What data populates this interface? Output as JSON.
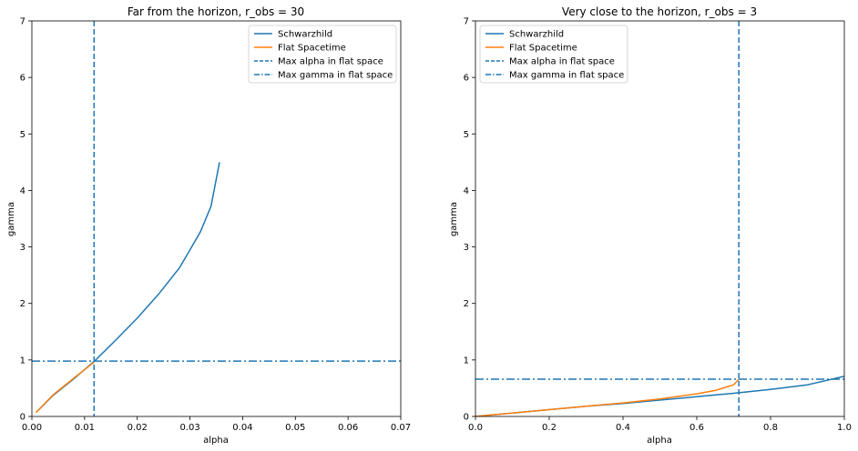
{
  "chart_data": [
    {
      "type": "line",
      "title": "Far from the horizon, r_obs = 30",
      "xlabel": "alpha",
      "ylabel": "gamma",
      "xlim": [
        0,
        0.07
      ],
      "ylim": [
        0,
        7
      ],
      "xticks": [
        "0.00",
        "0.01",
        "0.02",
        "0.03",
        "0.04",
        "0.05",
        "0.06",
        "0.07"
      ],
      "yticks": [
        "0",
        "1",
        "2",
        "3",
        "4",
        "5",
        "6",
        "7"
      ],
      "grid": false,
      "legend_position": "top-right",
      "colors": {
        "schwarzschild": "#1f77b4",
        "flat": "#ff7f0e"
      },
      "series": [
        {
          "name": "Schwarzhild",
          "style": "solid",
          "color": "#1f77b4",
          "x": [
            0.0008,
            0.004,
            0.008,
            0.012,
            0.016,
            0.02,
            0.024,
            0.028,
            0.03,
            0.032,
            0.034,
            0.0356
          ],
          "y": [
            0.07,
            0.37,
            0.67,
            0.99,
            1.36,
            1.74,
            2.16,
            2.63,
            2.95,
            3.27,
            3.72,
            4.5
          ]
        },
        {
          "name": "Flat Spacetime",
          "style": "solid",
          "color": "#ff7f0e",
          "x": [
            0.0008,
            0.004,
            0.008,
            0.0118
          ],
          "y": [
            0.07,
            0.38,
            0.68,
            0.96
          ]
        },
        {
          "name": "Max alpha in flat space",
          "style": "dashed",
          "color": "#1f77b4",
          "orientation": "vertical",
          "value": 0.0118
        },
        {
          "name": "Max gamma in flat space",
          "style": "dashdot",
          "color": "#1f77b4",
          "orientation": "horizontal",
          "value": 0.98
        }
      ]
    },
    {
      "type": "line",
      "title": "Very close to the horizon, r_obs = 3",
      "xlabel": "alpha",
      "ylabel": "gamma",
      "xlim": [
        0,
        1.0
      ],
      "ylim": [
        0,
        7
      ],
      "xticks": [
        "0.0",
        "0.2",
        "0.4",
        "0.6",
        "0.8",
        "1.0"
      ],
      "yticks": [
        "0",
        "1",
        "2",
        "3",
        "4",
        "5",
        "6",
        "7"
      ],
      "grid": false,
      "legend_position": "top-left",
      "colors": {
        "schwarzschild": "#1f77b4",
        "flat": "#ff7f0e"
      },
      "series": [
        {
          "name": "Schwarzhild",
          "style": "solid",
          "color": "#1f77b4",
          "x": [
            0.0,
            0.1,
            0.2,
            0.3,
            0.4,
            0.5,
            0.6,
            0.7,
            0.8,
            0.9,
            1.0
          ],
          "y": [
            0.0,
            0.06,
            0.12,
            0.18,
            0.23,
            0.29,
            0.35,
            0.41,
            0.48,
            0.56,
            0.71
          ]
        },
        {
          "name": "Flat Spacetime",
          "style": "solid",
          "color": "#ff7f0e",
          "x": [
            0.0,
            0.1,
            0.2,
            0.3,
            0.4,
            0.5,
            0.6,
            0.65,
            0.7,
            0.714
          ],
          "y": [
            0.0,
            0.06,
            0.12,
            0.18,
            0.24,
            0.31,
            0.4,
            0.46,
            0.56,
            0.66
          ]
        },
        {
          "name": "Max alpha in flat space",
          "style": "dashed",
          "color": "#1f77b4",
          "orientation": "vertical",
          "value": 0.714
        },
        {
          "name": "Max gamma in flat space",
          "style": "dashdot",
          "color": "#1f77b4",
          "orientation": "horizontal",
          "value": 0.66
        }
      ]
    }
  ]
}
